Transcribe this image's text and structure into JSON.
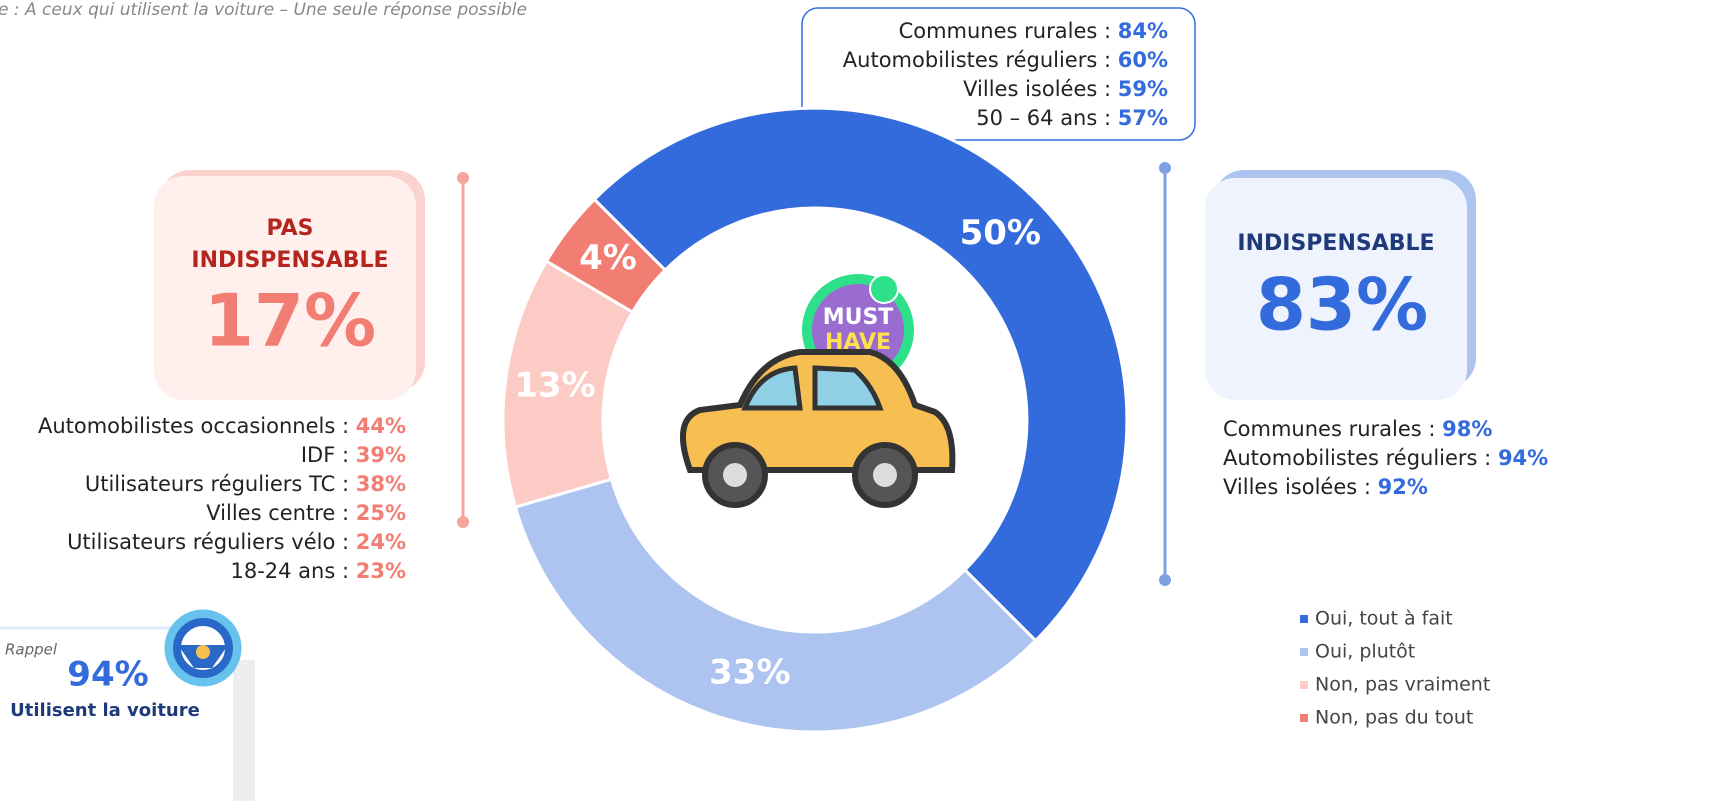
{
  "subtitle": "e : A ceux qui utilisent la voiture  – Une seule réponse possible",
  "chart_data": {
    "type": "donut",
    "categories": [
      "Oui, tout à fait",
      "Oui, plutôt",
      "Non, pas vraiment",
      "Non, pas du tout"
    ],
    "values": [
      50,
      33,
      13,
      4
    ],
    "value_labels": [
      "50%",
      "33%",
      "13%",
      "4%"
    ],
    "colors": [
      "#336bdd",
      "#aec4f0",
      "#fdcbc6",
      "#f27d72"
    ]
  },
  "badge": [
    "MUST",
    "HAVE"
  ],
  "top_box": {
    "rows": [
      {
        "label": "Communes rurales : ",
        "value": "84%"
      },
      {
        "label": "Automobilistes réguliers : ",
        "value": "60%"
      },
      {
        "label": "Villes isolées : ",
        "value": "59%"
      },
      {
        "label": "50 – 64 ans : ",
        "value": "57%"
      }
    ]
  },
  "left_panel": {
    "title": [
      "PAS",
      "INDISPENSABLE"
    ],
    "value": "17%",
    "rows": [
      {
        "label": "Automobilistes occasionnels : ",
        "value": "44%"
      },
      {
        "label": "IDF : ",
        "value": "39%"
      },
      {
        "label": "Utilisateurs réguliers TC : ",
        "value": "38%"
      },
      {
        "label": "Villes centre : ",
        "value": "25%"
      },
      {
        "label": "Utilisateurs réguliers vélo : ",
        "value": "24%"
      },
      {
        "label": "18-24 ans : ",
        "value": "23%"
      }
    ]
  },
  "right_panel": {
    "title": "INDISPENSABLE",
    "value": "83%",
    "rows": [
      {
        "label": "Communes rurales : ",
        "value": "98%"
      },
      {
        "label": "Automobilistes réguliers : ",
        "value": "94%"
      },
      {
        "label": "Villes isolées : ",
        "value": "92%"
      }
    ]
  },
  "rappel": {
    "label": "Rappel",
    "value": "94%",
    "text": "Utilisent la voiture"
  }
}
